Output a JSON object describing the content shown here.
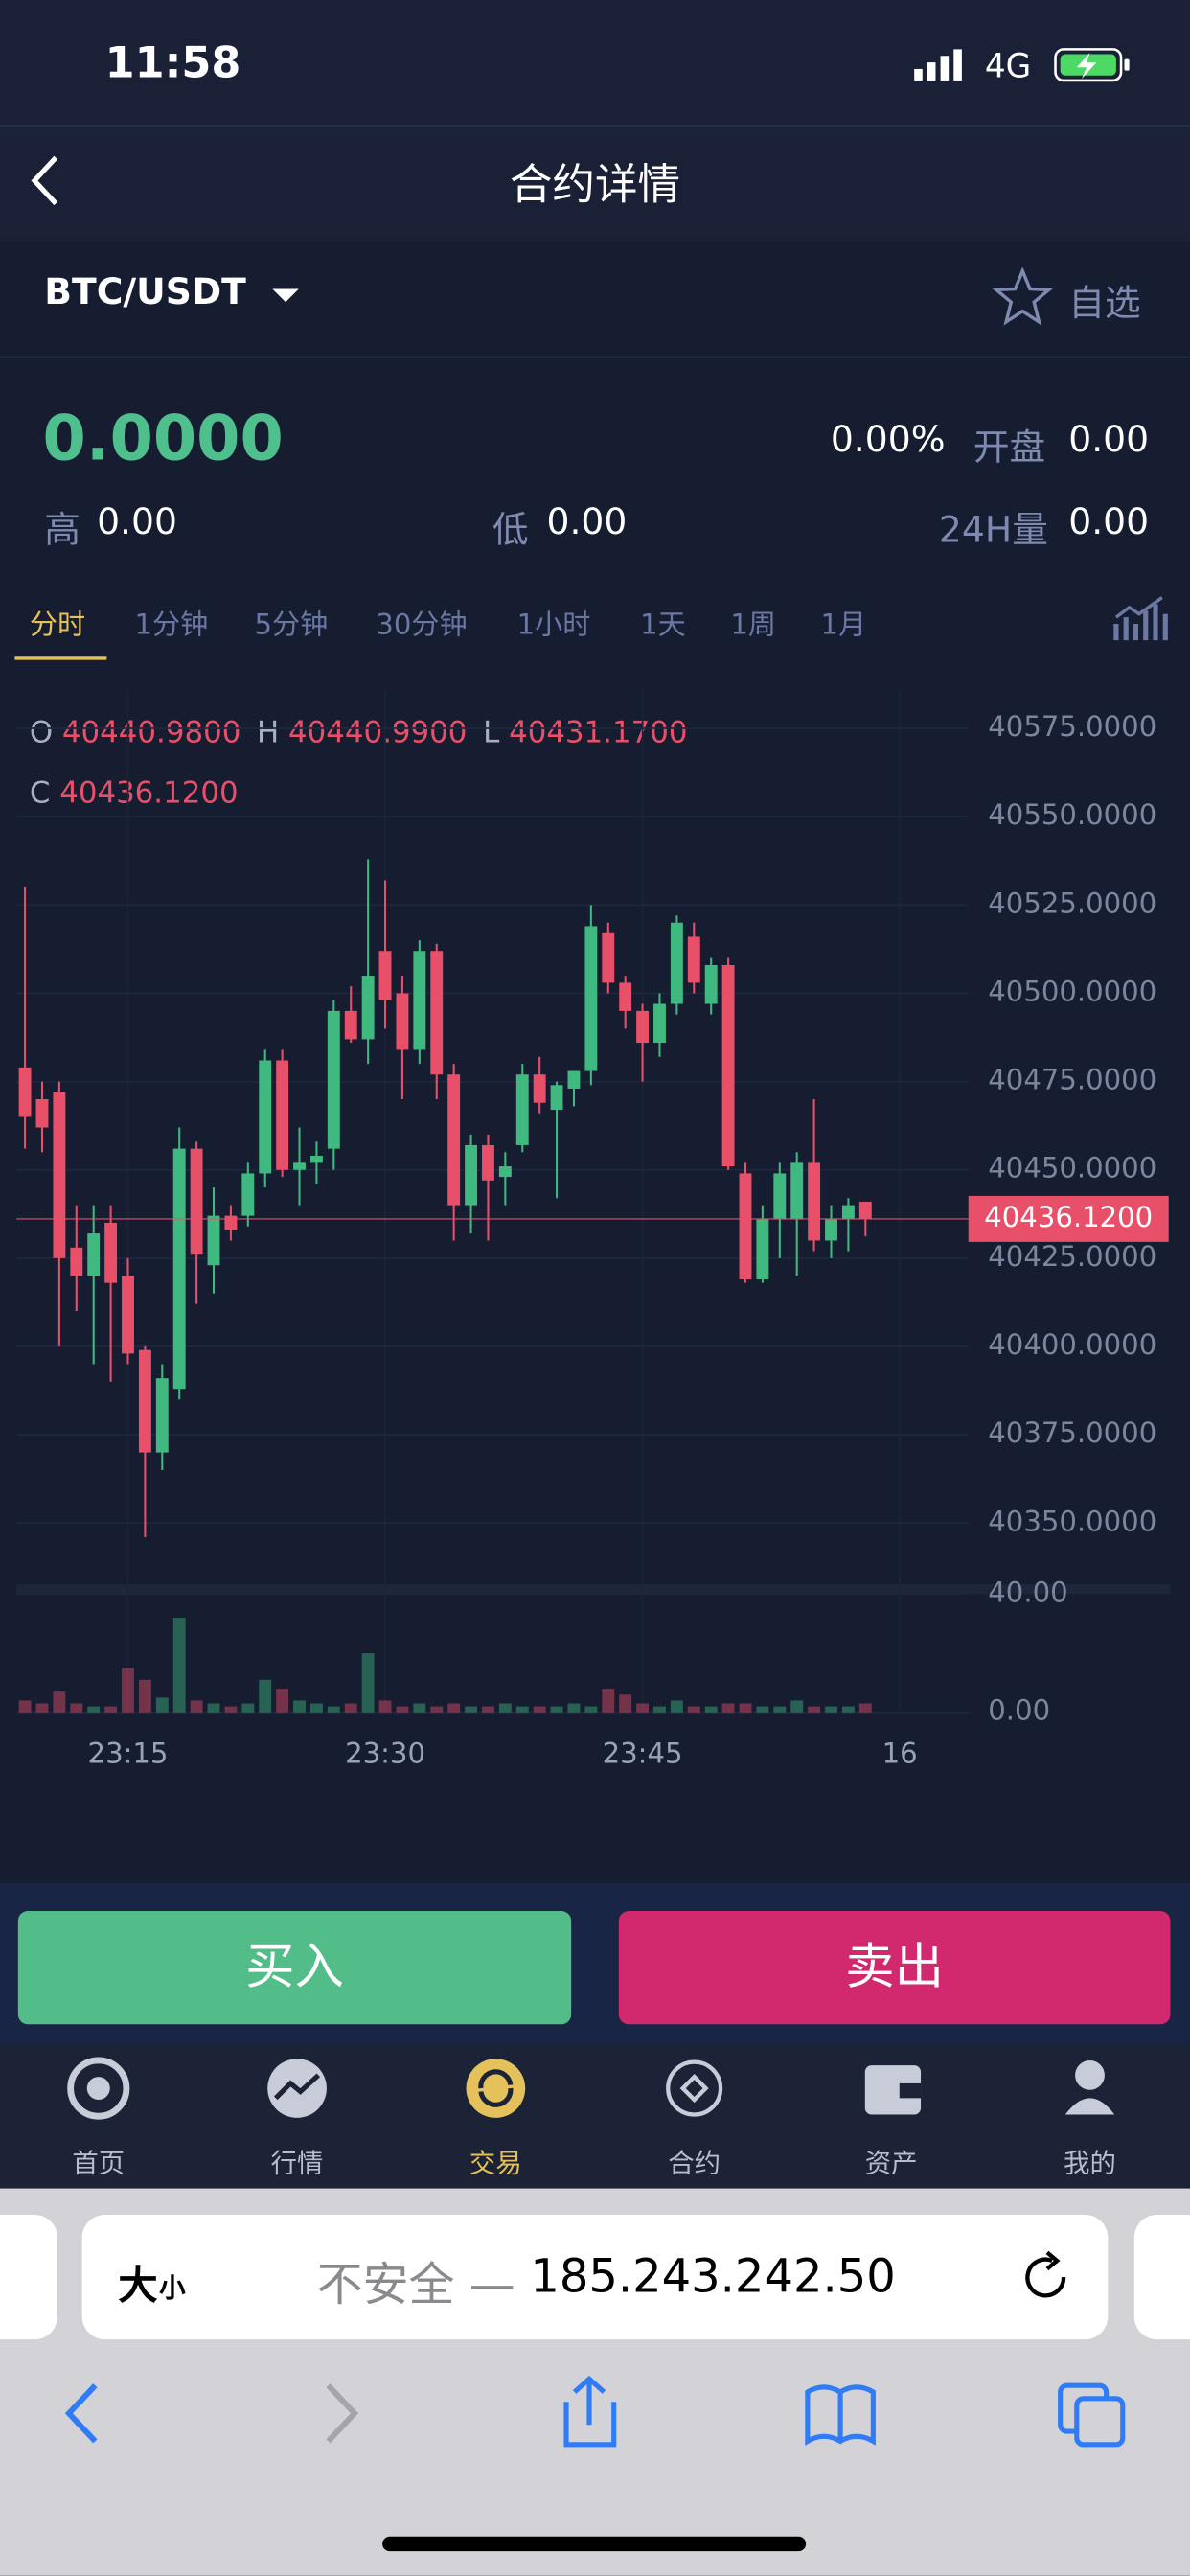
{
  "status_bar": {
    "time": "11:58",
    "network": "4G"
  },
  "nav": {
    "title": "合约详情"
  },
  "pair": {
    "symbol": "BTC/USDT",
    "favorite": "自选"
  },
  "ticker": {
    "price": "0.0000",
    "change": "0.00%",
    "open_label": "开盘",
    "open": "0.00",
    "high_label": "高",
    "high": "0.00",
    "low_label": "低",
    "low": "0.00",
    "volume_label": "24H量",
    "volume": "0.00"
  },
  "intervals": {
    "items": [
      "分时",
      "1分钟",
      "5分钟",
      "30分钟",
      "1小时",
      "1天",
      "1周",
      "1月"
    ],
    "active": 0
  },
  "legend": {
    "o_label": "O",
    "o": "40440.9800",
    "h_label": "H",
    "h": "40440.9900",
    "l_label": "L",
    "l": "40431.1700",
    "c_label": "C",
    "c": "40436.1200"
  },
  "chart_data": {
    "type": "candlestick",
    "up_color": "#3fb97f",
    "down_color": "#e8506a",
    "grid": true,
    "open": [
      40479,
      40470,
      40472,
      40428,
      40420,
      40435,
      40420,
      40399,
      40370,
      40388,
      40456,
      40423,
      40437,
      40437,
      40449,
      40481,
      40450,
      40452,
      40456,
      40495,
      40487,
      40512,
      40500,
      40484,
      40512,
      40477,
      40440,
      40457,
      40448,
      40457,
      40477,
      40467,
      40473,
      40478,
      40517,
      40503,
      40495,
      40486,
      40497,
      40516,
      40497,
      40508,
      40449,
      40419,
      40436,
      40436,
      40452,
      40430,
      40436,
      40440.98
    ],
    "high": [
      40530,
      40475,
      40475,
      40440,
      40440,
      40440,
      40425,
      40400,
      40395,
      40462,
      40458,
      40445,
      40440,
      40452,
      40484,
      40484,
      40462,
      40458,
      40498,
      40502,
      40538,
      40532,
      40505,
      40515,
      40514,
      40480,
      40460,
      40460,
      40455,
      40480,
      40482,
      40475,
      40478,
      40525,
      40520,
      40505,
      40497,
      40500,
      40522,
      40520,
      40510,
      40510,
      40452,
      40440,
      40452,
      40455,
      40470,
      40440,
      40442,
      40440.99
    ],
    "low": [
      40456,
      40455,
      40400,
      40410,
      40395,
      40390,
      40395,
      40346,
      40365,
      40385,
      40412,
      40415,
      40430,
      40434,
      40445,
      40448,
      40440,
      40446,
      40450,
      40486,
      40480,
      40490,
      40470,
      40480,
      40470,
      40430,
      40432,
      40430,
      40440,
      40455,
      40466,
      40442,
      40468,
      40474,
      40500,
      40490,
      40475,
      40482,
      40494,
      40500,
      40494,
      40450,
      40418,
      40418,
      40425,
      40420,
      40427,
      40425,
      40427,
      40431.17
    ],
    "close": [
      40465,
      40462,
      40425,
      40420,
      40432,
      40418,
      40398,
      40370,
      40391,
      40456,
      40426,
      40437,
      40433,
      40449,
      40481,
      40450,
      40452,
      40454,
      40495,
      40487,
      40505,
      40498,
      40484,
      40512,
      40477,
      40440,
      40457,
      40447,
      40451,
      40477,
      40469,
      40474,
      40478,
      40519,
      40503,
      40495,
      40486,
      40497,
      40520,
      40503,
      40508,
      40451,
      40419,
      40436,
      40449,
      40452,
      40430,
      40436,
      40440,
      40436.12
    ],
    "volume": [
      4,
      3,
      7,
      3,
      2,
      2,
      15,
      11,
      5,
      32,
      4,
      3,
      2,
      3,
      11,
      8,
      4,
      3,
      2,
      3,
      20,
      4,
      2,
      3,
      2,
      3,
      2,
      2,
      3,
      2,
      2,
      2,
      3,
      2,
      8,
      6,
      3,
      2,
      4,
      2,
      2,
      3,
      3,
      2,
      2,
      4,
      2,
      2,
      2,
      3
    ],
    "ylim": [
      40335,
      40586
    ],
    "yticks": [
      {
        "value": 40575,
        "label": "40575.0000"
      },
      {
        "value": 40550,
        "label": "40550.0000"
      },
      {
        "value": 40525,
        "label": "40525.0000"
      },
      {
        "value": 40500,
        "label": "40500.0000"
      },
      {
        "value": 40475,
        "label": "40475.0000"
      },
      {
        "value": 40450,
        "label": "40450.0000"
      },
      {
        "value": 40425,
        "label": "40425.0000"
      },
      {
        "value": 40400,
        "label": "40400.0000"
      },
      {
        "value": 40375,
        "label": "40375.0000"
      },
      {
        "value": 40350,
        "label": "40350.0000"
      }
    ],
    "vol_ylim": [
      0,
      40
    ],
    "vol_yticks": [
      {
        "value": 40,
        "label": "40.00"
      },
      {
        "value": 0,
        "label": "0.00"
      }
    ],
    "xlim": [
      -0.5,
      55
    ],
    "xticks": [
      {
        "value": 6,
        "label": "23:15"
      },
      {
        "value": 21,
        "label": "23:30"
      },
      {
        "value": 36,
        "label": "23:45"
      },
      {
        "value": 51,
        "label": "16"
      }
    ],
    "last_price": {
      "value": 40436.12,
      "label": "40436.1200"
    }
  },
  "actions": {
    "buy": "买入",
    "sell": "卖出"
  },
  "tabs": {
    "items": [
      "首页",
      "行情",
      "交易",
      "合约",
      "资产",
      "我的"
    ],
    "active": 2
  },
  "browser": {
    "text_size_big": "大",
    "text_size_small": "小",
    "security": "不安全 —",
    "address": "185.243.242.50"
  }
}
